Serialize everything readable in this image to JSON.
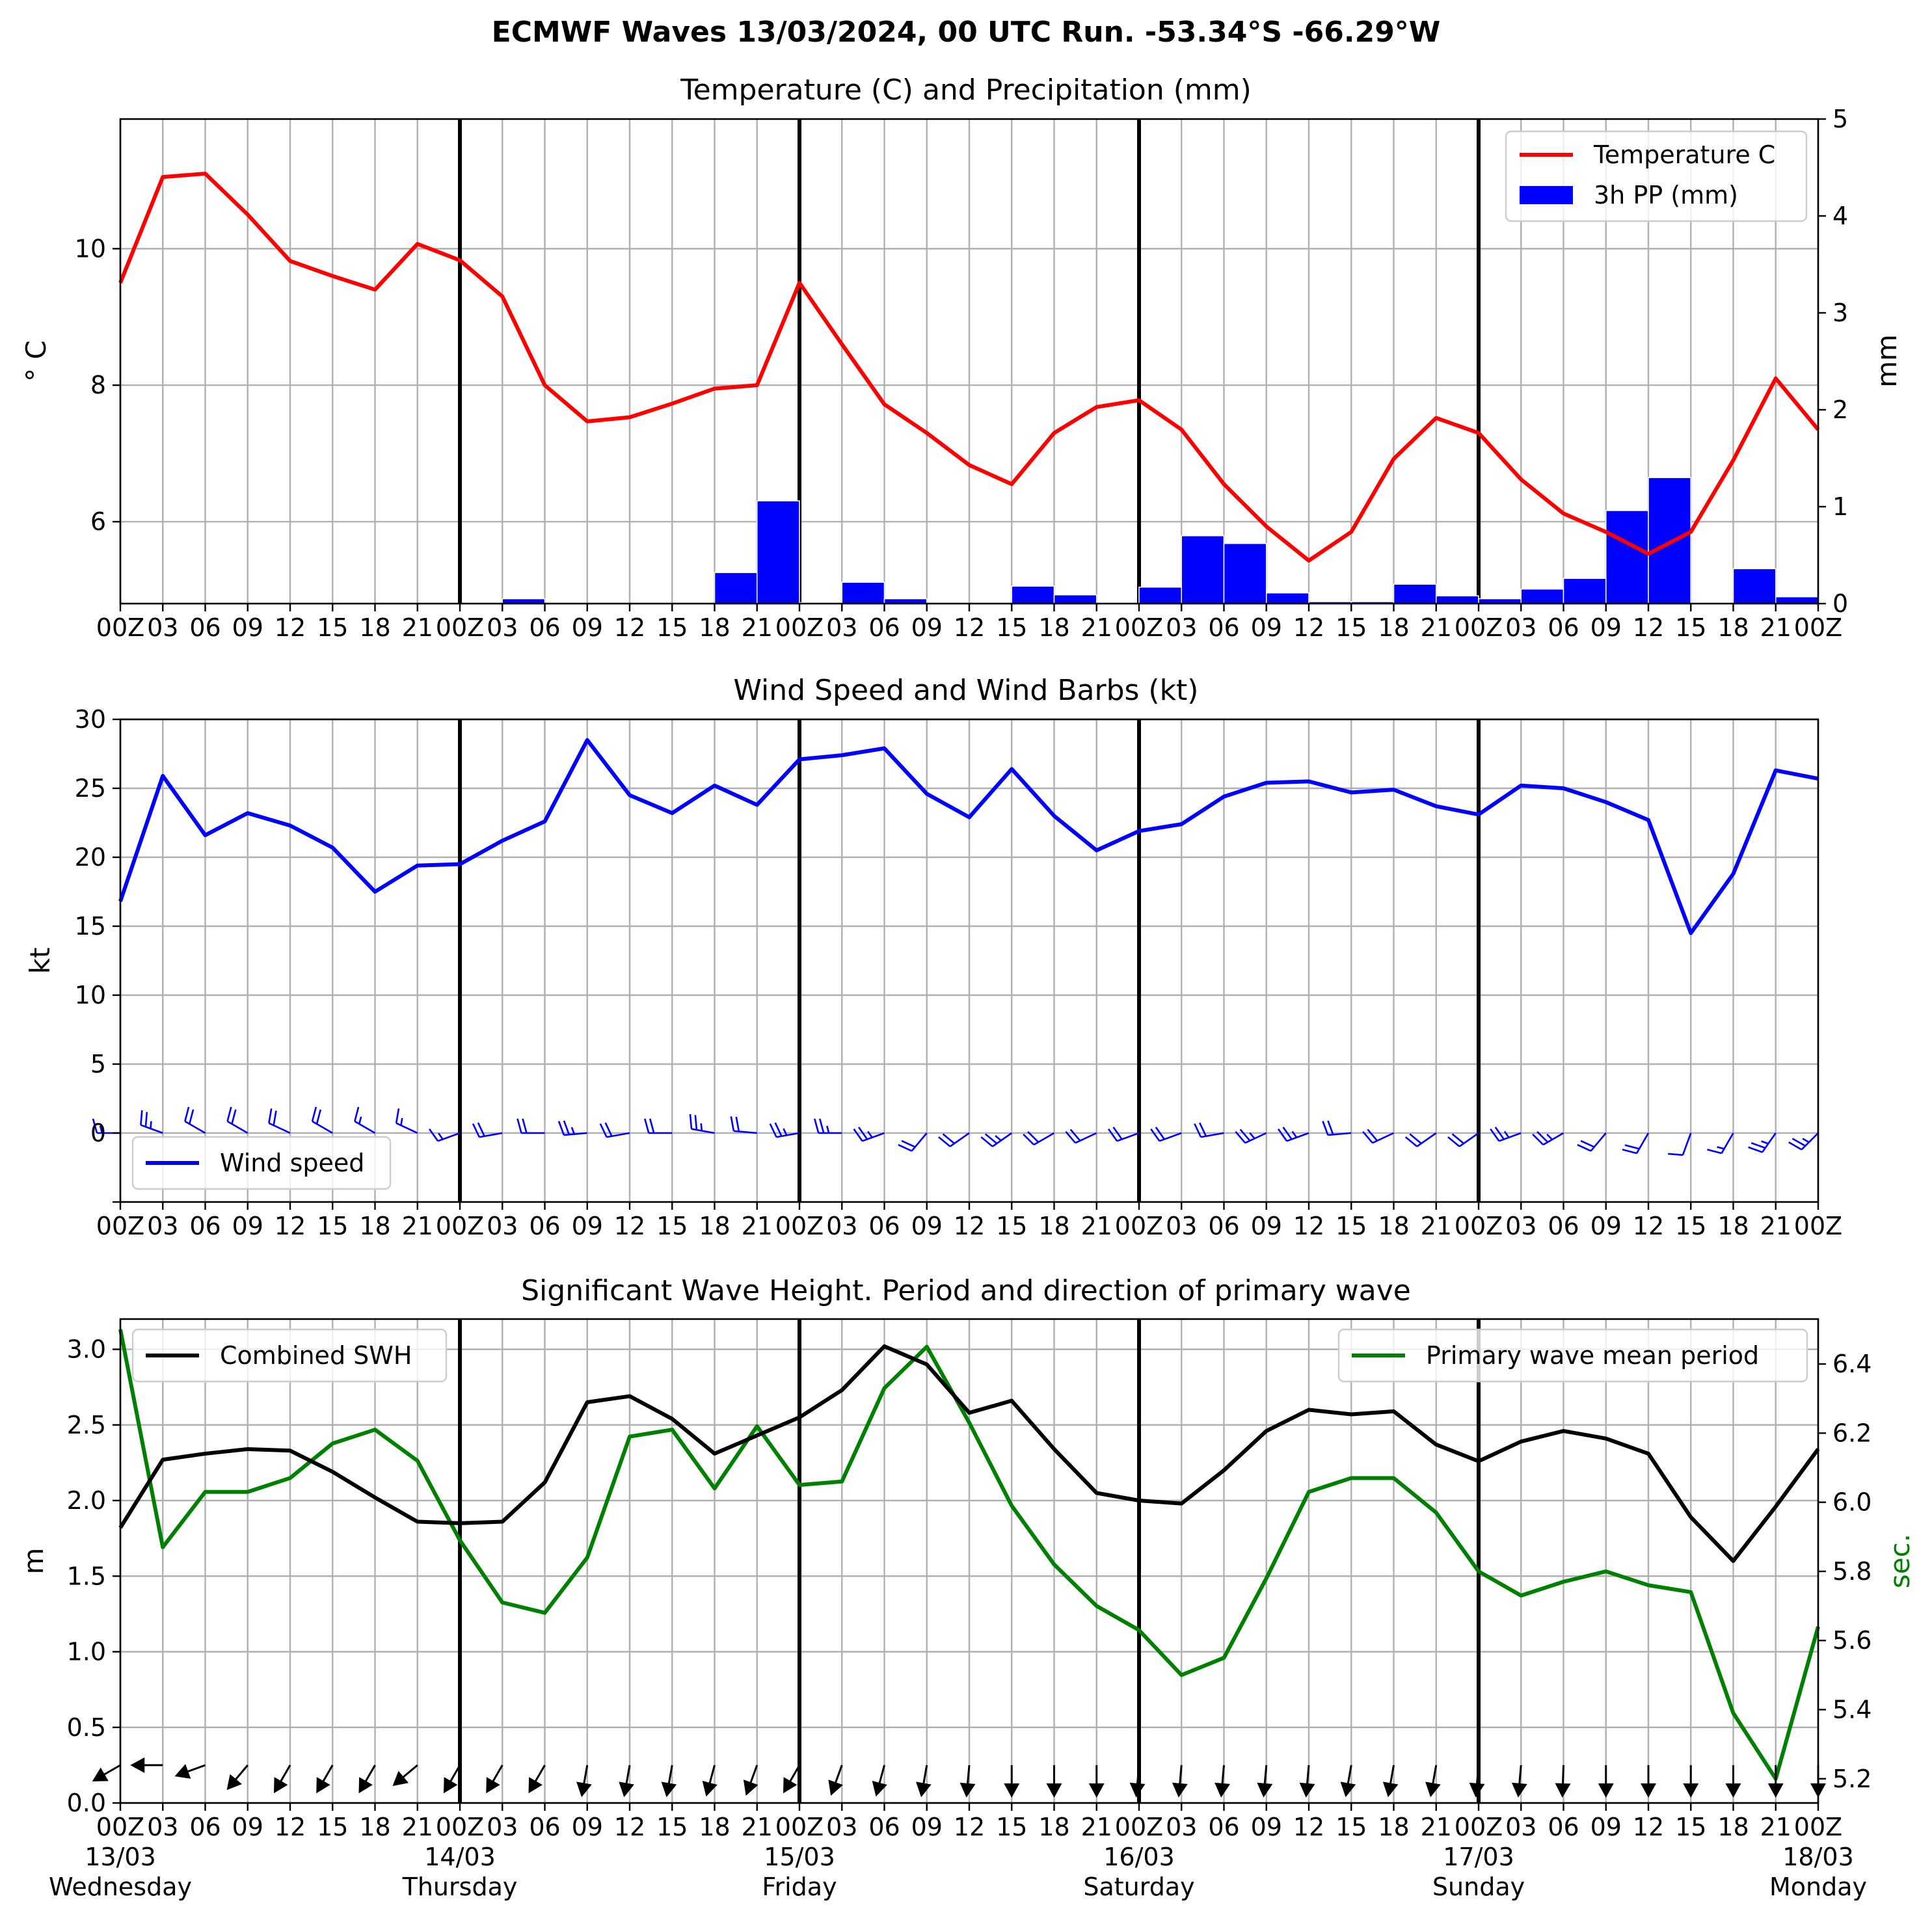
{
  "suptitle": "ECMWF Waves 13/03/2024, 00 UTC Run. -53.34°S -66.29°W",
  "hour_ticks": [
    "00Z",
    "03",
    "06",
    "09",
    "12",
    "15",
    "18",
    "21",
    "00Z",
    "03",
    "06",
    "09",
    "12",
    "15",
    "18",
    "21",
    "00Z",
    "03",
    "06",
    "09",
    "12",
    "15",
    "18",
    "21",
    "00Z",
    "03",
    "06",
    "09",
    "12",
    "15",
    "18",
    "21",
    "00Z",
    "03",
    "06",
    "09",
    "12",
    "15",
    "18",
    "21",
    "00Z"
  ],
  "days": [
    {
      "date": "13/03",
      "weekday": "Wednesday"
    },
    {
      "date": "14/03",
      "weekday": "Thursday"
    },
    {
      "date": "15/03",
      "weekday": "Friday"
    },
    {
      "date": "16/03",
      "weekday": "Saturday"
    },
    {
      "date": "17/03",
      "weekday": "Sunday"
    },
    {
      "date": "18/03",
      "weekday": "Monday"
    }
  ],
  "chart_data": [
    {
      "type": "line",
      "title": "Temperature (C) and Precipitation (mm)",
      "x_unit": "hours since 13/03/2024 00 UTC (3-hourly steps)",
      "ylabel": "$^\\circ$C",
      "ylabel_display": "° C",
      "ylabel_right": "mm",
      "ylim": [
        4.8,
        11.9
      ],
      "yticks": [
        6,
        8,
        10
      ],
      "ylim_right": [
        0,
        5
      ],
      "yticks_right": [
        0,
        1,
        2,
        3,
        4,
        5
      ],
      "grid": true,
      "legend_position": "upper right",
      "series": [
        {
          "name": "Temperature C",
          "color": "#ff0000",
          "axis": "left",
          "kind": "line",
          "values": [
            9.5,
            11.05,
            11.1,
            10.5,
            9.82,
            9.6,
            9.4,
            10.07,
            9.83,
            9.3,
            8.0,
            7.47,
            7.53,
            7.73,
            7.95,
            8.0,
            9.5,
            8.6,
            7.72,
            7.3,
            6.83,
            6.55,
            7.3,
            7.68,
            7.78,
            7.35,
            6.55,
            5.93,
            5.43,
            5.85,
            6.92,
            7.52,
            7.3,
            6.62,
            6.12,
            5.85,
            5.53,
            5.85,
            6.9,
            8.1,
            7.35
          ]
        },
        {
          "name": "3h PP (mm)",
          "color": "#0000ff",
          "axis": "right",
          "kind": "bar",
          "values": [
            0,
            0,
            0,
            0,
            0,
            0,
            0,
            0,
            0,
            0.05,
            0,
            0,
            0,
            0,
            0.32,
            1.06,
            0.01,
            0.22,
            0.05,
            0,
            0,
            0.18,
            0.09,
            0,
            0.17,
            0.7,
            0.62,
            0.11,
            0.02,
            0.02,
            0.2,
            0.08,
            0.05,
            0.15,
            0.26,
            0.96,
            1.3,
            0.01,
            0.36,
            0.07,
            0
          ]
        }
      ]
    },
    {
      "type": "line",
      "title": "Wind Speed and Wind Barbs (kt)",
      "ylabel": "kt",
      "ylim": [
        -5,
        30
      ],
      "yticks": [
        0,
        5,
        10,
        15,
        20,
        25,
        30
      ],
      "grid": true,
      "legend_position": "lower left",
      "series": [
        {
          "name": "Wind speed",
          "color": "#0000ff",
          "values": [
            16.8,
            25.9,
            21.6,
            23.2,
            22.3,
            20.7,
            17.5,
            19.4,
            19.5,
            21.2,
            22.6,
            28.5,
            24.5,
            23.2,
            25.2,
            23.8,
            27.1,
            27.4,
            27.9,
            24.6,
            22.9,
            26.4,
            23.0,
            20.5,
            21.9,
            22.4,
            24.4,
            25.4,
            25.5,
            24.7,
            24.9,
            23.7,
            23.1,
            25.2,
            25.0,
            24.0,
            22.7,
            14.5,
            18.8,
            26.3,
            25.7
          ]
        }
      ],
      "barbs_from_direction_deg": [
        270,
        290,
        300,
        300,
        295,
        300,
        300,
        295,
        250,
        260,
        270,
        265,
        260,
        270,
        280,
        275,
        260,
        270,
        250,
        220,
        235,
        235,
        240,
        245,
        250,
        250,
        260,
        245,
        250,
        265,
        245,
        235,
        235,
        250,
        240,
        220,
        210,
        200,
        210,
        215,
        225
      ]
    },
    {
      "type": "line",
      "title": "Significant Wave Height. Period and direction of primary wave",
      "ylabel": "m",
      "ylabel_right": "sec.",
      "ylim": [
        0,
        3.2
      ],
      "yticks": [
        0.0,
        0.5,
        1.0,
        1.5,
        2.0,
        2.5,
        3.0
      ],
      "ylim_right": [
        5.13,
        6.53
      ],
      "yticks_right": [
        5.2,
        5.4,
        5.6,
        5.8,
        6.0,
        6.2,
        6.4
      ],
      "grid": true,
      "series": [
        {
          "name": "Combined SWH",
          "color": "#000000",
          "axis": "left",
          "legend_position": "upper left",
          "values": [
            1.82,
            2.27,
            2.31,
            2.34,
            2.33,
            2.19,
            2.02,
            1.86,
            1.85,
            1.86,
            2.12,
            2.65,
            2.69,
            2.54,
            2.31,
            2.43,
            2.55,
            2.73,
            3.02,
            2.9,
            2.58,
            2.66,
            2.34,
            2.05,
            2.0,
            1.98,
            2.2,
            2.46,
            2.6,
            2.57,
            2.59,
            2.37,
            2.26,
            2.39,
            2.46,
            2.41,
            2.31,
            1.89,
            1.6,
            1.96,
            2.34
          ]
        },
        {
          "name": "Primary wave mean period",
          "color": "#008000",
          "axis": "right",
          "legend_position": "upper right",
          "values": [
            6.5,
            5.87,
            6.03,
            6.03,
            6.07,
            6.17,
            6.21,
            6.12,
            5.89,
            5.71,
            5.68,
            5.84,
            6.19,
            6.21,
            6.04,
            6.22,
            6.05,
            6.06,
            6.33,
            6.45,
            6.23,
            5.99,
            5.82,
            5.7,
            5.63,
            5.5,
            5.55,
            5.78,
            6.03,
            6.07,
            6.07,
            5.97,
            5.8,
            5.73,
            5.77,
            5.8,
            5.76,
            5.74,
            5.39,
            5.2,
            5.64
          ]
        }
      ],
      "arrows_to_direction_deg": [
        240,
        270,
        250,
        220,
        210,
        210,
        210,
        230,
        210,
        210,
        210,
        190,
        190,
        190,
        195,
        200,
        210,
        200,
        195,
        190,
        185,
        180,
        180,
        180,
        185,
        185,
        185,
        185,
        185,
        190,
        190,
        190,
        185,
        185,
        182,
        180,
        180,
        180,
        180,
        180,
        180
      ]
    }
  ]
}
